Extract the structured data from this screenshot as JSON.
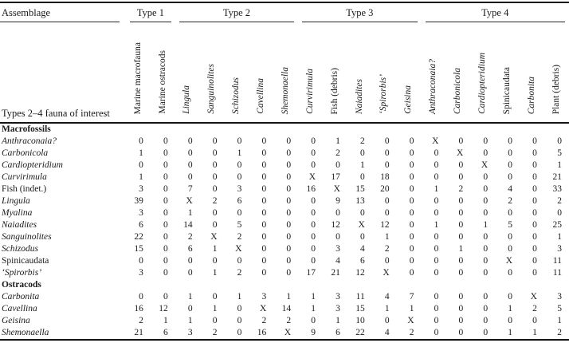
{
  "table": {
    "corner_title": "Assemblage",
    "corner_subtitle": "Types 2–4 fauna of interest",
    "groups": [
      {
        "label": "Type 1",
        "span": 2
      },
      {
        "label": "Type 2",
        "span": 5
      },
      {
        "label": "Type 3",
        "span": 5
      },
      {
        "label": "Type 4",
        "span": 6
      }
    ],
    "columns": [
      {
        "label": "Marine macrofauna",
        "italic": false
      },
      {
        "label": "Marine ostracods",
        "italic": false
      },
      {
        "label": "Lingula",
        "italic": true
      },
      {
        "label": "Sanguinolites",
        "italic": true
      },
      {
        "label": "Schizodus",
        "italic": true
      },
      {
        "label": "Cavellina",
        "italic": true
      },
      {
        "label": "Shemonaella",
        "italic": true
      },
      {
        "label": "Curvirimula",
        "italic": true
      },
      {
        "label": "Fish (debris)",
        "italic": false
      },
      {
        "label": "Naiadites",
        "italic": true
      },
      {
        "label": "‘Spirorbis’",
        "italic": true
      },
      {
        "label": "Geisina",
        "italic": true
      },
      {
        "label": "Anthraconaia?",
        "italic": true
      },
      {
        "label": "Carbonicola",
        "italic": true
      },
      {
        "label": "Cardiopteridium",
        "italic": true
      },
      {
        "label": "Spinicaudata",
        "italic": false
      },
      {
        "label": "Carbonita",
        "italic": true
      },
      {
        "label": "Plant (debris)",
        "italic": false
      }
    ],
    "sections": [
      {
        "header": "Macrofossils",
        "rows": [
          {
            "label": "Anthraconaia?",
            "italic": true,
            "values": [
              "0",
              "0",
              "0",
              "0",
              "0",
              "0",
              "0",
              "0",
              "1",
              "2",
              "0",
              "0",
              "X",
              "0",
              "0",
              "0",
              "0",
              "0"
            ]
          },
          {
            "label": "Carbonicola",
            "italic": true,
            "values": [
              "1",
              "0",
              "0",
              "0",
              "1",
              "0",
              "0",
              "0",
              "2",
              "0",
              "0",
              "0",
              "0",
              "X",
              "0",
              "0",
              "0",
              "5"
            ]
          },
          {
            "label": "Cardiopteridium",
            "italic": true,
            "values": [
              "0",
              "0",
              "0",
              "0",
              "0",
              "0",
              "0",
              "0",
              "0",
              "1",
              "0",
              "0",
              "0",
              "0",
              "X",
              "0",
              "0",
              "1"
            ]
          },
          {
            "label": "Curvirimula",
            "italic": true,
            "values": [
              "1",
              "0",
              "0",
              "0",
              "0",
              "0",
              "0",
              "X",
              "17",
              "0",
              "18",
              "0",
              "0",
              "0",
              "0",
              "0",
              "0",
              "21"
            ]
          },
          {
            "label": "Fish (indet.)",
            "italic": false,
            "values": [
              "3",
              "0",
              "7",
              "0",
              "3",
              "0",
              "0",
              "16",
              "X",
              "15",
              "20",
              "0",
              "1",
              "2",
              "0",
              "4",
              "0",
              "33"
            ]
          },
          {
            "label": "Lingula",
            "italic": true,
            "values": [
              "39",
              "0",
              "X",
              "2",
              "6",
              "0",
              "0",
              "0",
              "9",
              "13",
              "0",
              "0",
              "0",
              "0",
              "0",
              "2",
              "0",
              "2"
            ]
          },
          {
            "label": "Myalina",
            "italic": true,
            "values": [
              "3",
              "0",
              "1",
              "0",
              "0",
              "0",
              "0",
              "0",
              "0",
              "0",
              "0",
              "0",
              "0",
              "0",
              "0",
              "0",
              "0",
              "0"
            ]
          },
          {
            "label": "Naiadites",
            "italic": true,
            "values": [
              "6",
              "0",
              "14",
              "0",
              "5",
              "0",
              "0",
              "0",
              "12",
              "X",
              "12",
              "0",
              "1",
              "0",
              "1",
              "5",
              "0",
              "25"
            ]
          },
          {
            "label": "Sanguinolites",
            "italic": true,
            "values": [
              "22",
              "0",
              "2",
              "X",
              "2",
              "0",
              "0",
              "0",
              "0",
              "0",
              "1",
              "0",
              "0",
              "0",
              "0",
              "0",
              "0",
              "1"
            ]
          },
          {
            "label": "Schizodus",
            "italic": true,
            "values": [
              "15",
              "0",
              "6",
              "1",
              "X",
              "0",
              "0",
              "0",
              "3",
              "4",
              "2",
              "0",
              "0",
              "1",
              "0",
              "0",
              "0",
              "3"
            ]
          },
          {
            "label": "Spinicaudata",
            "italic": false,
            "values": [
              "0",
              "0",
              "0",
              "0",
              "0",
              "0",
              "0",
              "0",
              "4",
              "6",
              "0",
              "0",
              "0",
              "0",
              "0",
              "X",
              "0",
              "11"
            ]
          },
          {
            "label": "‘Spirorbis’",
            "italic": true,
            "values": [
              "3",
              "0",
              "0",
              "1",
              "2",
              "0",
              "0",
              "17",
              "21",
              "12",
              "X",
              "0",
              "0",
              "0",
              "0",
              "0",
              "0",
              "11"
            ]
          }
        ]
      },
      {
        "header": "Ostracods",
        "rows": [
          {
            "label": "Carbonita",
            "italic": true,
            "values": [
              "0",
              "0",
              "1",
              "0",
              "1",
              "3",
              "1",
              "1",
              "3",
              "11",
              "4",
              "7",
              "0",
              "0",
              "0",
              "0",
              "X",
              "3"
            ]
          },
          {
            "label": "Cavellina",
            "italic": true,
            "values": [
              "16",
              "12",
              "0",
              "1",
              "0",
              "X",
              "14",
              "1",
              "3",
              "15",
              "1",
              "1",
              "0",
              "0",
              "0",
              "1",
              "2",
              "5"
            ]
          },
          {
            "label": "Geisina",
            "italic": true,
            "values": [
              "2",
              "1",
              "1",
              "0",
              "0",
              "2",
              "2",
              "0",
              "1",
              "10",
              "0",
              "X",
              "0",
              "0",
              "0",
              "0",
              "0",
              "1"
            ]
          },
          {
            "label": "Shemonaella",
            "italic": true,
            "values": [
              "21",
              "6",
              "3",
              "2",
              "0",
              "16",
              "X",
              "9",
              "6",
              "22",
              "4",
              "2",
              "0",
              "0",
              "0",
              "1",
              "1",
              "2"
            ]
          }
        ]
      }
    ]
  }
}
